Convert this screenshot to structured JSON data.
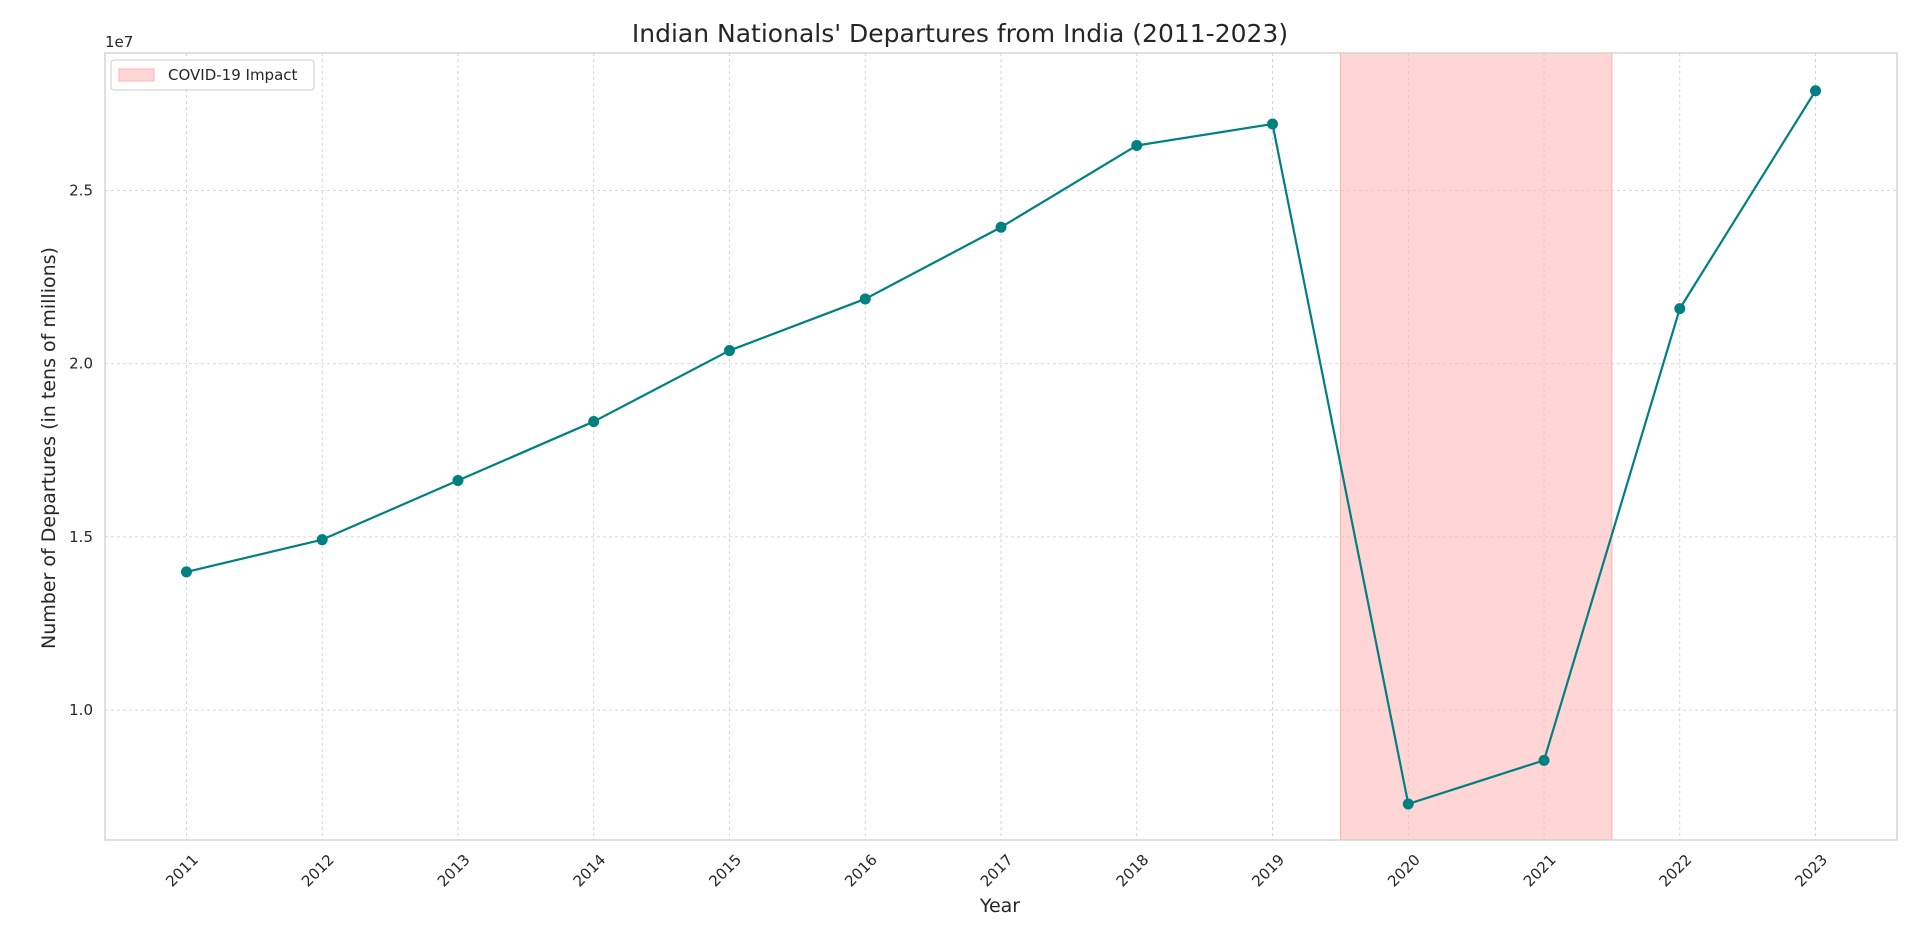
{
  "chart_data": {
    "type": "line",
    "title": "Indian Nationals' Departures from India (2011-2023)",
    "xlabel": "Year",
    "ylabel": "Number of Departures (in tens of millions)",
    "y_offset_label": "1e7",
    "x": [
      "2011",
      "2012",
      "2013",
      "2014",
      "2015",
      "2016",
      "2017",
      "2018",
      "2019",
      "2020",
      "2021",
      "2022",
      "2023"
    ],
    "series": [
      {
        "values": [
          13990000,
          14920000,
          16630000,
          18330000,
          20380000,
          21870000,
          23940000,
          26300000,
          26920000,
          7290000,
          8550000,
          21590000,
          27880000
        ],
        "color": "#008080"
      }
    ],
    "ylim": [
      6250000,
      28970000
    ],
    "yticks": [
      10000000,
      15000000,
      20000000,
      25000000
    ],
    "ytick_labels": [
      "1.0",
      "1.5",
      "2.0",
      "2.5"
    ],
    "highlight_band": {
      "label": "COVID-19 Impact",
      "x_from": "2019.5",
      "x_to": "2021.5",
      "color": "#ffb3b3"
    },
    "legend_position": "top-left",
    "grid": true
  }
}
